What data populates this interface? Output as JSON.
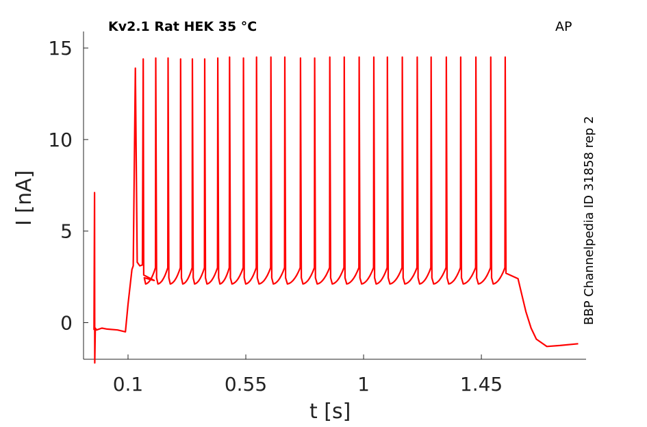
{
  "chart_data": {
    "type": "line",
    "title": "Kv2.1  Rat  HEK  35 °C",
    "corner_label": "AP",
    "side_label": "BBP Channelpedia ID 31858 rep 2",
    "xlabel": "t [s]",
    "ylabel": "I [nA]",
    "xlim": [
      -0.07,
      1.85
    ],
    "ylim": [
      -2,
      16.5
    ],
    "xticks": [
      0.1,
      0.55,
      1,
      1.45
    ],
    "xtick_labels": [
      "0.1",
      "0.55",
      "1",
      "1.45"
    ],
    "yticks": [
      0,
      5,
      10,
      15
    ],
    "ytick_labels": [
      "0",
      "5",
      "10",
      "15"
    ],
    "grid": false,
    "color": "#ff0000",
    "series": [
      {
        "x": [
          -0.03,
          -0.028,
          -0.027,
          -0.025,
          -0.02,
          0.0,
          0.02,
          0.06,
          0.09,
          0.1,
          0.115,
          0.12,
          0.128,
          0.135,
          0.145,
          0.155,
          0.158,
          0.16,
          0.2,
          1.59,
          1.6,
          1.62,
          1.64,
          1.66,
          1.7,
          1.75,
          1.82
        ],
        "y": [
          -0.4,
          7.1,
          -2.2,
          -0.3,
          -0.4,
          -0.3,
          -0.35,
          -0.4,
          -0.5,
          1.0,
          2.9,
          3.1,
          13.9,
          3.3,
          3.1,
          3.15,
          14.4,
          2.6,
          2.3,
          2.4,
          1.8,
          0.6,
          -0.3,
          -0.9,
          -1.3,
          -1.25,
          -1.15
        ]
      }
    ],
    "spike_times": [
      0.128,
      0.158,
      0.205,
      0.252,
      0.3,
      0.345,
      0.392,
      0.442,
      0.487,
      0.54,
      0.59,
      0.645,
      0.698,
      0.758,
      0.812,
      0.87,
      0.925,
      0.982,
      1.038,
      1.09,
      1.147,
      1.204,
      1.257,
      1.315,
      1.37,
      1.428,
      1.485,
      1.54
    ],
    "spike_peaks": [
      13.9,
      14.45,
      14.45,
      14.45,
      14.4,
      14.4,
      14.4,
      14.45,
      14.5,
      14.45,
      14.5,
      14.5,
      14.5,
      14.45,
      14.45,
      14.5,
      14.5,
      14.5,
      14.5,
      14.5,
      14.5,
      14.5,
      14.5,
      14.5,
      14.5,
      14.5,
      14.5,
      14.5
    ],
    "stim_start": 0.09,
    "stim_end": 1.59,
    "pre_level": -0.35,
    "plateau_level": 2.1,
    "post_level": -1.2
  }
}
